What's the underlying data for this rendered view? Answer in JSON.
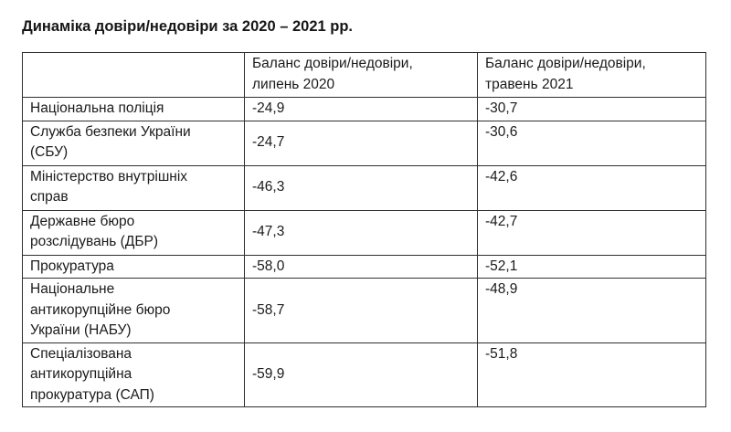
{
  "title": "Динаміка довіри/недовіри за 2020 – 2021 рр.",
  "colors": {
    "background": "#ffffff",
    "border": "#2f2f2f",
    "text": "#1b1b1b"
  },
  "table": {
    "columns": [
      {
        "label": ""
      },
      {
        "label": "Баланс довіри/недовіри,\nлипень 2020"
      },
      {
        "label": "Баланс довіри/недовіри,\nтравень 2021"
      }
    ],
    "rows": [
      {
        "label": "Національна поліція",
        "jul2020": "-24,9",
        "may2021": "-30,7"
      },
      {
        "label": "Служба безпеки України\n(СБУ)",
        "jul2020": "-24,7",
        "may2021": "-30,6"
      },
      {
        "label": "Міністерство внутрішніх\nсправ",
        "jul2020": "-46,3",
        "may2021": "-42,6"
      },
      {
        "label": "Державне бюро\nрозслідувань (ДБР)",
        "jul2020": "-47,3",
        "may2021": "-42,7"
      },
      {
        "label": "Прокуратура",
        "jul2020": "-58,0",
        "may2021": "-52,1"
      },
      {
        "label": "Національне\nантикорупційне бюро\nУкраїни (НАБУ)",
        "jul2020": "-58,7",
        "may2021": "-48,9"
      },
      {
        "label": "Спеціалізована\nантикорупційна\nпрокуратура (САП)",
        "jul2020": "-59,9",
        "may2021": "-51,8"
      }
    ]
  },
  "chart_data": {
    "type": "table",
    "title": "Динаміка довіри/недовіри за 2020 – 2021 рр.",
    "categories": [
      "Національна поліція",
      "Служба безпеки України (СБУ)",
      "Міністерство внутрішніх справ",
      "Державне бюро розслідувань (ДБР)",
      "Прокуратура",
      "Національне антикорупційне бюро України (НАБУ)",
      "Спеціалізована антикорупційна прокуратура (САП)"
    ],
    "series": [
      {
        "name": "Баланс довіри/недовіри, липень 2020",
        "values": [
          -24.9,
          -24.7,
          -46.3,
          -47.3,
          -58.0,
          -58.7,
          -59.9
        ]
      },
      {
        "name": "Баланс довіри/недовіри, травень 2021",
        "values": [
          -30.7,
          -30.6,
          -42.6,
          -42.7,
          -52.1,
          -48.9,
          -51.8
        ]
      }
    ]
  }
}
